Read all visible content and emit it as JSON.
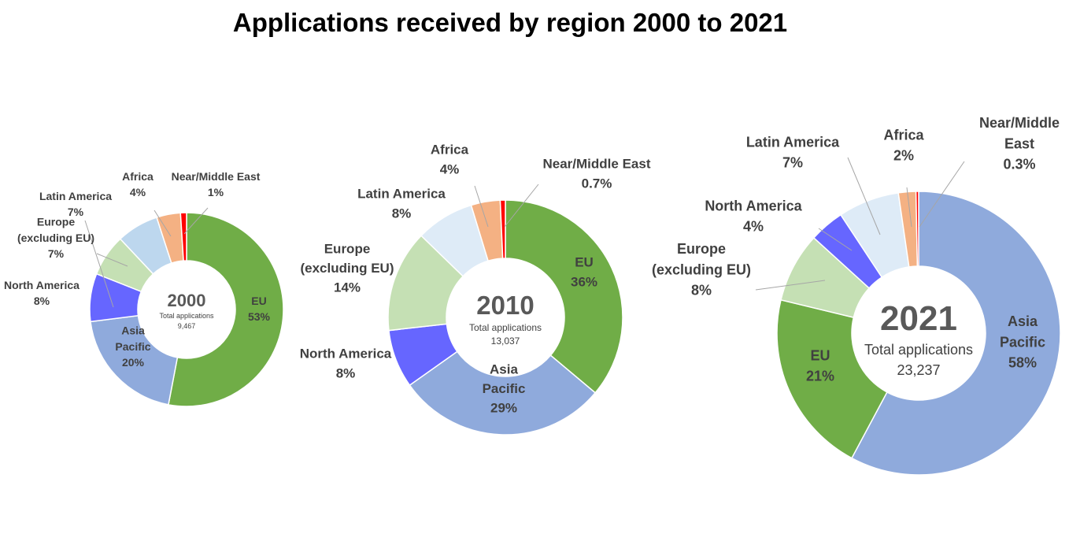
{
  "title": "Applications received by region 2000 to 2021",
  "colors": {
    "EU": "#70ad47",
    "Asia Pacific": "#8faadc",
    "North America": "#6666ff",
    "Europe (excluding EU)": "#c5e0b4",
    "Latin America": "#deebf7",
    "Latin America 2000": "#bdd7ee",
    "Africa": "#f4b183",
    "Near/Middle East": "#ff0000"
  },
  "chart_data": [
    {
      "type": "pie",
      "variant": "donut",
      "center_title": "2000",
      "center_subtitle": "Total applications",
      "center_value": "9,467",
      "slices": [
        {
          "name": "EU",
          "label_lines": [
            "EU"
          ],
          "pct_label": "53%",
          "value": 53
        },
        {
          "name": "Asia Pacific",
          "label_lines": [
            "Asia",
            "Pacific"
          ],
          "pct_label": "20%",
          "value": 20
        },
        {
          "name": "North America",
          "label_lines": [
            "North America"
          ],
          "pct_label": "8%",
          "value": 8
        },
        {
          "name": "Europe (excluding EU)",
          "label_lines": [
            "Europe",
            "(excluding EU)"
          ],
          "pct_label": "7%",
          "value": 7
        },
        {
          "name": "Latin America",
          "label_lines": [
            "Latin America"
          ],
          "pct_label": "7%",
          "value": 7
        },
        {
          "name": "Africa",
          "label_lines": [
            "Africa"
          ],
          "pct_label": "4%",
          "value": 4
        },
        {
          "name": "Near/Middle East",
          "label_lines": [
            "Near/Middle East"
          ],
          "pct_label": "1%",
          "value": 1
        }
      ]
    },
    {
      "type": "pie",
      "variant": "donut",
      "center_title": "2010",
      "center_subtitle": "Total applications",
      "center_value": "13,037",
      "slices": [
        {
          "name": "EU",
          "label_lines": [
            "EU"
          ],
          "pct_label": "36%",
          "value": 36
        },
        {
          "name": "Asia Pacific",
          "label_lines": [
            "Asia",
            "Pacific"
          ],
          "pct_label": "29%",
          "value": 29
        },
        {
          "name": "North America",
          "label_lines": [
            "North America"
          ],
          "pct_label": "8%",
          "value": 8
        },
        {
          "name": "Europe (excluding EU)",
          "label_lines": [
            "Europe",
            "(excluding EU)"
          ],
          "pct_label": "14%",
          "value": 14
        },
        {
          "name": "Latin America",
          "label_lines": [
            "Latin America"
          ],
          "pct_label": "8%",
          "value": 8
        },
        {
          "name": "Africa",
          "label_lines": [
            "Africa"
          ],
          "pct_label": "4%",
          "value": 4
        },
        {
          "name": "Near/Middle East",
          "label_lines": [
            "Near/Middle East"
          ],
          "pct_label": "0.7%",
          "value": 0.7
        }
      ]
    },
    {
      "type": "pie",
      "variant": "donut",
      "center_title": "2021",
      "center_subtitle": "Total applications",
      "center_value": "23,237",
      "slices": [
        {
          "name": "Asia Pacific",
          "label_lines": [
            "Asia",
            "Pacific"
          ],
          "pct_label": "58%",
          "value": 58
        },
        {
          "name": "EU",
          "label_lines": [
            "EU"
          ],
          "pct_label": "21%",
          "value": 21
        },
        {
          "name": "Europe (excluding EU)",
          "label_lines": [
            "Europe",
            "(excluding EU)"
          ],
          "pct_label": "8%",
          "value": 8
        },
        {
          "name": "North America",
          "label_lines": [
            "North America"
          ],
          "pct_label": "4%",
          "value": 4
        },
        {
          "name": "Latin America",
          "label_lines": [
            "Latin America"
          ],
          "pct_label": "7%",
          "value": 7
        },
        {
          "name": "Africa",
          "label_lines": [
            "Africa"
          ],
          "pct_label": "2%",
          "value": 2
        },
        {
          "name": "Near/Middle East",
          "label_lines": [
            "Near/Middle",
            "East"
          ],
          "pct_label": "0.3%",
          "value": 0.3
        }
      ]
    }
  ]
}
